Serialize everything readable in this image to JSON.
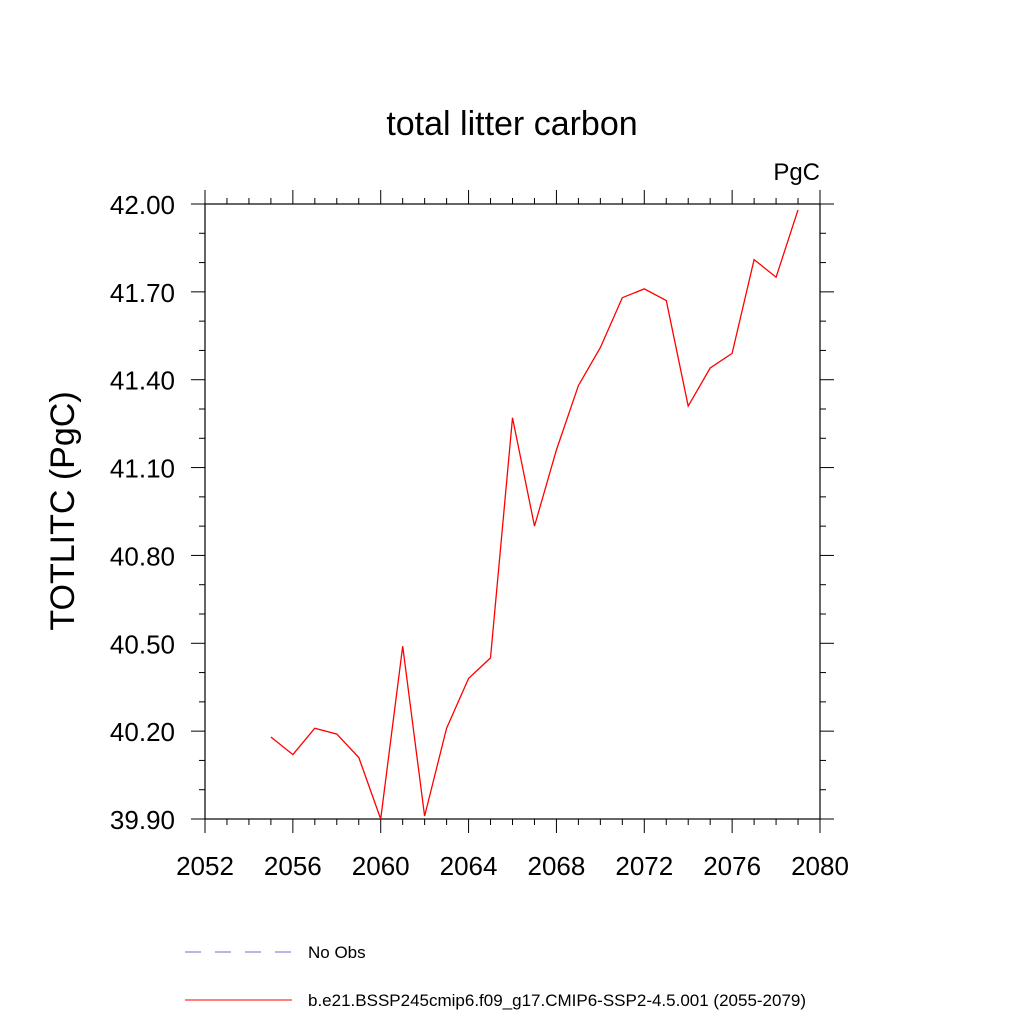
{
  "chart_data": {
    "type": "line",
    "title": "total litter carbon",
    "units_label": "PgC",
    "ylabel": "TOTLITC  (PgC)",
    "xlabel": "",
    "xlim": [
      2052,
      2080
    ],
    "ylim": [
      39.9,
      42.0
    ],
    "x_ticks": [
      "2052",
      "2056",
      "2060",
      "2064",
      "2068",
      "2072",
      "2076",
      "2080"
    ],
    "y_ticks": [
      "39.90",
      "40.20",
      "40.50",
      "40.80",
      "41.10",
      "41.40",
      "41.70",
      "42.00"
    ],
    "series": [
      {
        "name": "b.e21.BSSP245cmip6.f09_g17.CMIP6-SSP2-4.5.001 (2055-2079)",
        "color": "#ff0000",
        "style": "solid",
        "x": [
          2055,
          2056,
          2057,
          2058,
          2059,
          2060,
          2061,
          2062,
          2063,
          2064,
          2065,
          2066,
          2067,
          2068,
          2069,
          2070,
          2071,
          2072,
          2073,
          2074,
          2075,
          2076,
          2077,
          2078,
          2079
        ],
        "y": [
          40.18,
          40.12,
          40.21,
          40.19,
          40.11,
          39.9,
          40.49,
          39.91,
          40.21,
          40.38,
          40.45,
          41.27,
          40.9,
          41.16,
          41.38,
          41.51,
          41.68,
          41.71,
          41.67,
          41.31,
          41.44,
          41.49,
          41.81,
          41.75,
          41.98
        ]
      }
    ],
    "legend": [
      {
        "label": "No Obs",
        "color": "#6f6fcf",
        "style": "dashed"
      },
      {
        "label": "b.e21.BSSP245cmip6.f09_g17.CMIP6-SSP2-4.5.001 (2055-2079)",
        "color": "#ff0000",
        "style": "solid"
      }
    ],
    "grid": false,
    "legend_position": "bottom"
  }
}
